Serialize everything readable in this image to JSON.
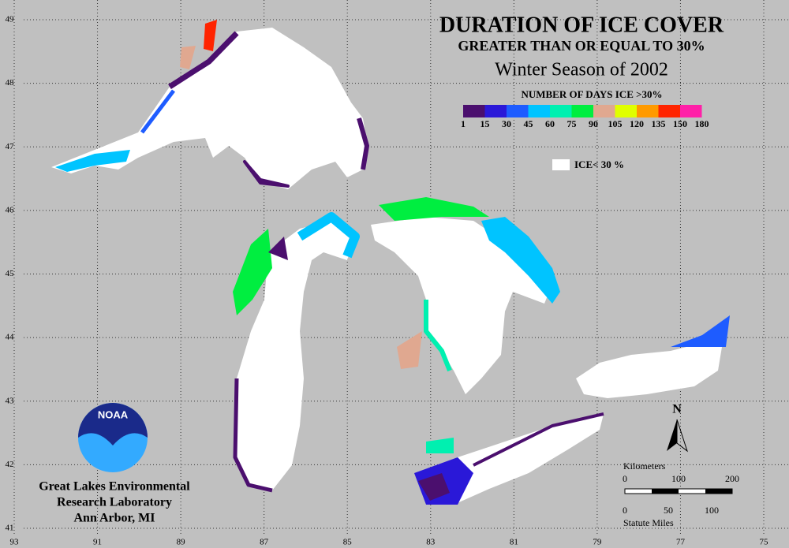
{
  "title": "DURATION OF ICE COVER",
  "subtitle": "GREATER THAN OR EQUAL TO 30%",
  "season": "Winter Season of 2002",
  "legend": {
    "title": "NUMBER OF DAYS ICE >30%",
    "colors": [
      "#4b0f6e",
      "#2a18d8",
      "#1e5cff",
      "#00c4ff",
      "#00f0b0",
      "#00ee40",
      "#e0a890",
      "#e0ff00",
      "#ff9a00",
      "#ff2400",
      "#ff20a8"
    ],
    "labels": [
      1,
      15,
      30,
      45,
      60,
      75,
      90,
      105,
      120,
      135,
      150,
      180
    ],
    "no_ice": "ICE< 30 %"
  },
  "lat_ticks": [
    49,
    48,
    47,
    46,
    45,
    44,
    43,
    42,
    41
  ],
  "lon_ticks": [
    93,
    91,
    89,
    87,
    85,
    83,
    81,
    79,
    77,
    75
  ],
  "logo": "NOAA",
  "north": "N",
  "organization": [
    "Great Lakes Environmental",
    "Research Laboratory",
    "Ann Arbor, MI"
  ],
  "scale": {
    "km_title": "Kilometers",
    "km_ticks": [
      0,
      100,
      200
    ],
    "mi_ticks": [
      0,
      50,
      100
    ],
    "mi_title": "Statute Miles"
  }
}
